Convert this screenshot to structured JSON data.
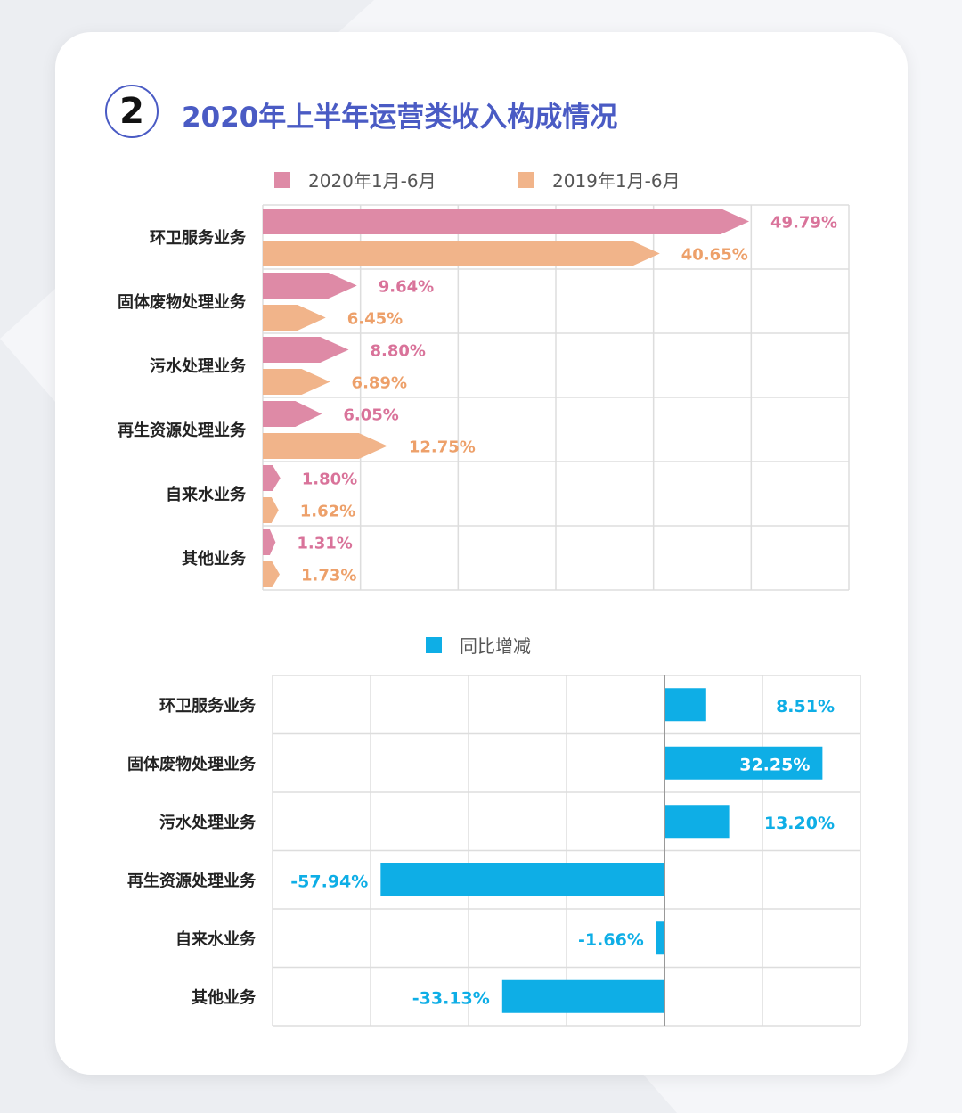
{
  "title": {
    "number": "2",
    "text": "2020年上半年运营类收入构成情况"
  },
  "colors": {
    "series_2020": "#de8aa6",
    "series_2019": "#f1b48a",
    "label_2020": "#d9739a",
    "label_2019": "#eda06a",
    "yoy": "#0eaee6",
    "grid": "#dddddd",
    "category_text": "#222222"
  },
  "chart_data": [
    {
      "type": "bar",
      "orientation": "horizontal",
      "categories": [
        "环卫服务业务",
        "固体废物处理业务",
        "污水处理业务",
        "再生资源处理业务",
        "自来水业务",
        "其他业务"
      ],
      "series": [
        {
          "name": "2020年1月-6月",
          "values": [
            49.79,
            9.64,
            8.8,
            6.05,
            1.8,
            1.31
          ],
          "labels": [
            "49.79%",
            "9.64%",
            "8.80%",
            "6.05%",
            "1.80%",
            "1.31%"
          ]
        },
        {
          "name": "2019年1月-6月",
          "values": [
            40.65,
            6.45,
            6.89,
            12.75,
            1.62,
            1.73
          ],
          "labels": [
            "40.65%",
            "6.45%",
            "6.89%",
            "12.75%",
            "1.62%",
            "1.73%"
          ]
        }
      ],
      "xlim": [
        0,
        60
      ],
      "legend": "top",
      "grid": true
    },
    {
      "type": "bar",
      "orientation": "horizontal",
      "categories": [
        "环卫服务业务",
        "固体废物处理业务",
        "污水处理业务",
        "再生资源处理业务",
        "自来水业务",
        "其他业务"
      ],
      "series": [
        {
          "name": "同比增减",
          "values": [
            8.51,
            32.25,
            13.2,
            -57.94,
            -1.66,
            -33.13
          ],
          "labels": [
            "8.51%",
            "32.25%",
            "13.20%",
            "-57.94%",
            "-1.66%",
            "-33.13%"
          ]
        }
      ],
      "xlim": [
        -80,
        40
      ],
      "legend": "top",
      "grid": true
    }
  ]
}
